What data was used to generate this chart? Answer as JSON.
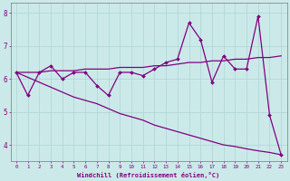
{
  "xlabel": "Windchill (Refroidissement éolien,°C)",
  "xlim": [
    -0.5,
    23.5
  ],
  "ylim": [
    3.5,
    8.3
  ],
  "yticks": [
    4,
    5,
    6,
    7,
    8
  ],
  "xticks": [
    0,
    1,
    2,
    3,
    4,
    5,
    6,
    7,
    8,
    9,
    10,
    11,
    12,
    13,
    14,
    15,
    16,
    17,
    18,
    19,
    20,
    21,
    22,
    23
  ],
  "bg_color": "#cce9e9",
  "line_color": "#800080",
  "grid_color": "#b0d8d8",
  "x": [
    0,
    1,
    2,
    3,
    4,
    5,
    6,
    7,
    8,
    9,
    10,
    11,
    12,
    13,
    14,
    15,
    16,
    17,
    18,
    19,
    20,
    21,
    22,
    23
  ],
  "y_main": [
    6.2,
    5.5,
    6.2,
    6.4,
    6.0,
    6.2,
    6.2,
    5.8,
    5.5,
    6.2,
    6.2,
    6.1,
    6.3,
    6.5,
    6.6,
    7.7,
    7.2,
    5.9,
    6.7,
    6.3,
    6.3,
    7.9,
    4.9,
    3.7
  ],
  "y_upper": [
    6.2,
    6.2,
    6.2,
    6.25,
    6.25,
    6.25,
    6.3,
    6.3,
    6.3,
    6.35,
    6.35,
    6.35,
    6.4,
    6.4,
    6.45,
    6.5,
    6.5,
    6.55,
    6.55,
    6.6,
    6.6,
    6.65,
    6.65,
    6.7
  ],
  "y_lower": [
    6.2,
    6.05,
    5.9,
    5.75,
    5.6,
    5.45,
    5.35,
    5.25,
    5.1,
    4.95,
    4.85,
    4.75,
    4.6,
    4.5,
    4.4,
    4.3,
    4.2,
    4.1,
    4.0,
    3.95,
    3.88,
    3.82,
    3.77,
    3.7
  ]
}
